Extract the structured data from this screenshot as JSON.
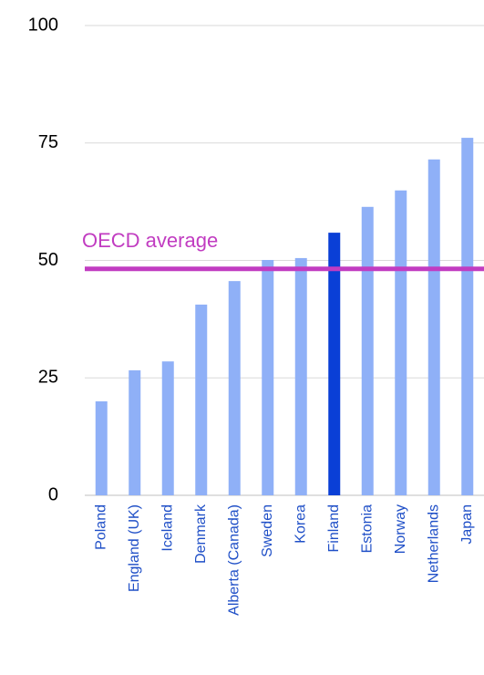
{
  "chart_data": {
    "type": "bar",
    "categories": [
      "Poland",
      "England (UK)",
      "Iceland",
      "Denmark",
      "Alberta (Canada)",
      "Sweden",
      "Korea",
      "Finland",
      "Estonia",
      "Norway",
      "Netherlands",
      "Japan"
    ],
    "values": [
      20,
      26.6,
      28.5,
      40.6,
      45.6,
      50.1,
      50.5,
      55.9,
      61.4,
      64.9,
      71.5,
      76.1
    ],
    "colors": [
      "#8fb0f7",
      "#8fb0f7",
      "#8fb0f7",
      "#8fb0f7",
      "#8fb0f7",
      "#8fb0f7",
      "#8fb0f7",
      "#0a3fd6",
      "#8fb0f7",
      "#8fb0f7",
      "#8fb0f7",
      "#8fb0f7"
    ],
    "ylim": [
      0,
      100
    ],
    "yticks": [
      0,
      25,
      50,
      75,
      100
    ],
    "grid": true,
    "reference_line": {
      "label": "OECD average",
      "value": 48.2,
      "color": "#c13cc1"
    }
  }
}
